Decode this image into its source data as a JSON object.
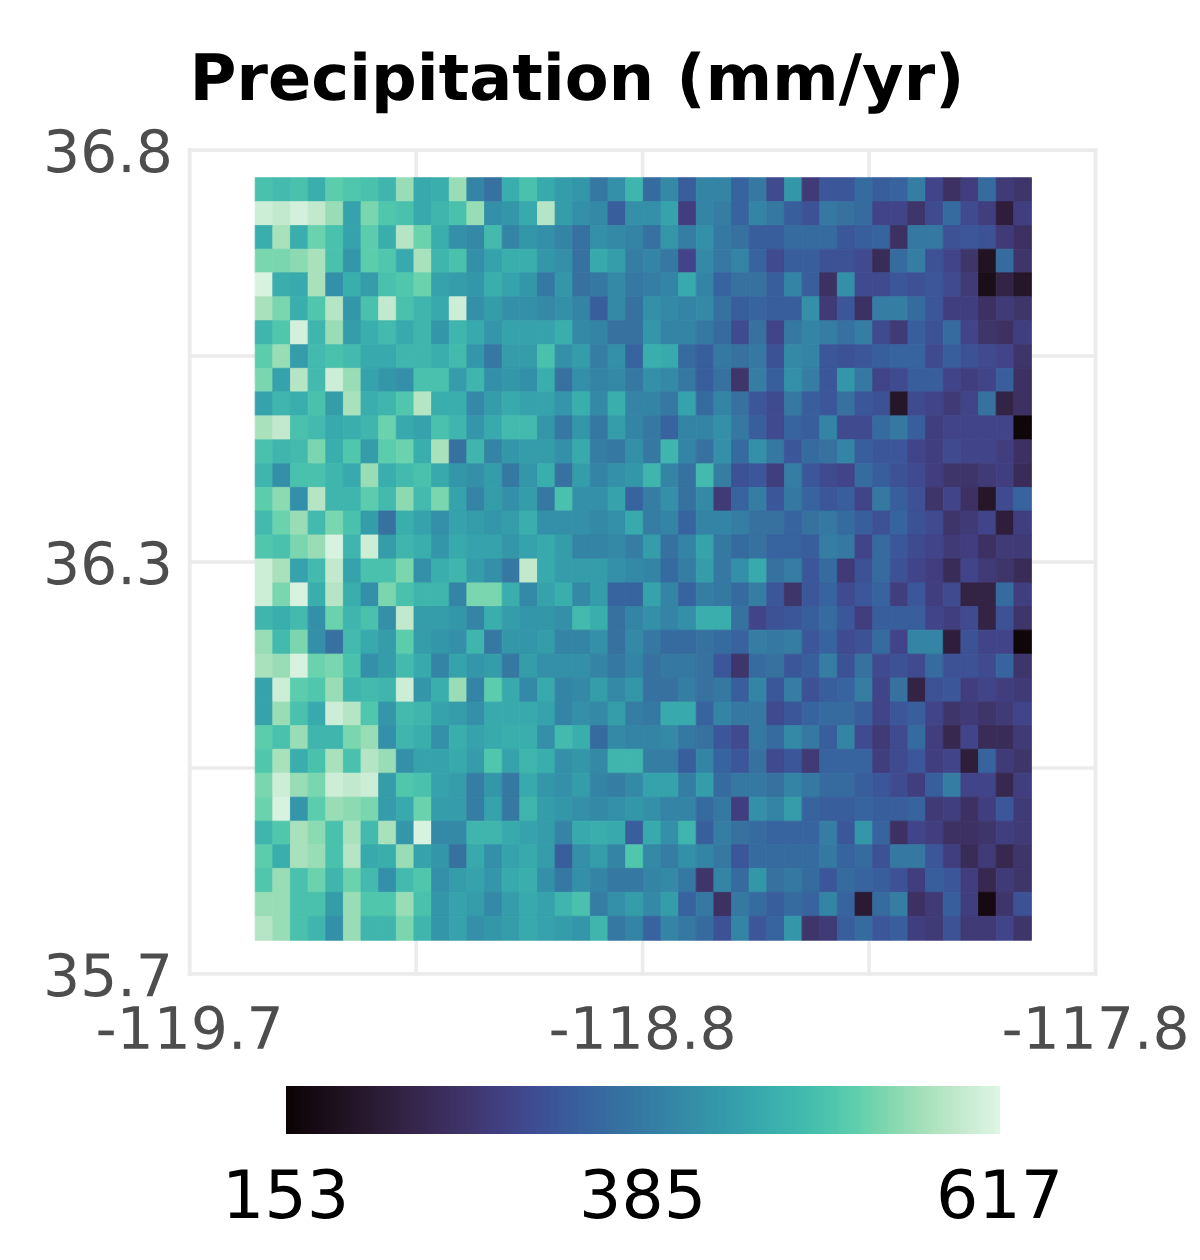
{
  "chart_data": {
    "type": "heatmap",
    "title": "Precipitation (mm/yr)",
    "x": [
      -119.544,
      -119.507,
      -119.47,
      -119.433,
      -119.396,
      -119.359,
      -119.322,
      -119.285,
      -119.248,
      -119.211,
      -119.174,
      -119.137,
      -119.1,
      -119.063,
      -119.026,
      -118.989,
      -118.952,
      -118.915,
      -118.878,
      -118.841,
      -118.804,
      -118.767,
      -118.73,
      -118.693,
      -118.656,
      -118.619,
      -118.582,
      -118.545,
      -118.508,
      -118.471,
      -118.434,
      -118.397,
      -118.36,
      -118.323,
      -118.286,
      -118.249,
      -118.212,
      -118.175,
      -118.138,
      -118.101,
      -118.064,
      -118.027,
      -117.99,
      -117.953
    ],
    "y": [
      36.747,
      36.715,
      36.683,
      36.652,
      36.62,
      36.588,
      36.556,
      36.524,
      36.493,
      36.461,
      36.429,
      36.397,
      36.365,
      36.334,
      36.302,
      36.27,
      36.238,
      36.206,
      36.175,
      36.143,
      36.111,
      36.079,
      36.047,
      36.016,
      35.984,
      35.952,
      35.92,
      35.888,
      35.857,
      35.825,
      35.793,
      35.761
    ],
    "cells": [
      [
        500,
        490,
        500,
        470,
        520,
        510,
        500,
        480,
        560,
        460,
        470,
        560,
        400,
        370,
        470,
        500,
        460,
        440,
        430,
        380,
        420,
        480,
        360,
        410,
        340,
        400,
        400,
        350,
        380,
        310,
        430,
        280,
        330,
        330,
        360,
        340,
        350,
        390,
        300,
        260,
        290,
        360,
        280,
        270
      ],
      [
        600,
        590,
        605,
        590,
        560,
        450,
        540,
        510,
        500,
        460,
        480,
        500,
        560,
        420,
        430,
        460,
        580,
        440,
        420,
        410,
        340,
        420,
        420,
        450,
        290,
        400,
        390,
        350,
        400,
        380,
        340,
        320,
        380,
        370,
        360,
        300,
        300,
        270,
        310,
        360,
        310,
        290,
        220,
        290
      ],
      [
        470,
        570,
        470,
        530,
        500,
        450,
        520,
        470,
        580,
        530,
        470,
        420,
        410,
        490,
        400,
        430,
        420,
        400,
        370,
        420,
        410,
        400,
        370,
        430,
        390,
        420,
        380,
        370,
        340,
        340,
        360,
        360,
        360,
        330,
        340,
        350,
        260,
        380,
        380,
        320,
        330,
        320,
        280,
        260
      ],
      [
        540,
        540,
        550,
        570,
        500,
        430,
        520,
        510,
        460,
        570,
        480,
        500,
        420,
        450,
        470,
        470,
        430,
        420,
        370,
        460,
        440,
        390,
        400,
        380,
        300,
        410,
        380,
        400,
        350,
        310,
        340,
        340,
        320,
        320,
        310,
        250,
        360,
        390,
        320,
        300,
        270,
        190,
        360,
        270
      ],
      [
        610,
        470,
        460,
        570,
        420,
        470,
        440,
        500,
        510,
        530,
        450,
        440,
        430,
        470,
        450,
        430,
        380,
        430,
        370,
        380,
        410,
        380,
        390,
        400,
        460,
        400,
        350,
        370,
        370,
        340,
        400,
        340,
        260,
        420,
        310,
        310,
        330,
        320,
        330,
        310,
        280,
        180,
        230,
        200
      ],
      [
        570,
        540,
        470,
        510,
        580,
        430,
        500,
        590,
        500,
        480,
        460,
        600,
        420,
        440,
        420,
        420,
        410,
        420,
        400,
        340,
        410,
        370,
        420,
        410,
        400,
        410,
        370,
        340,
        350,
        340,
        340,
        420,
        280,
        330,
        260,
        390,
        390,
        360,
        330,
        290,
        290,
        260,
        280,
        270
      ],
      [
        480,
        510,
        605,
        480,
        560,
        440,
        470,
        490,
        460,
        480,
        430,
        480,
        460,
        430,
        450,
        450,
        450,
        470,
        410,
        400,
        370,
        370,
        430,
        400,
        400,
        380,
        360,
        310,
        370,
        300,
        380,
        400,
        390,
        370,
        390,
        310,
        280,
        340,
        320,
        360,
        300,
        270,
        260,
        290
      ],
      [
        520,
        560,
        440,
        490,
        500,
        490,
        460,
        460,
        480,
        480,
        470,
        490,
        430,
        380,
        440,
        440,
        500,
        420,
        440,
        390,
        420,
        350,
        470,
        460,
        360,
        340,
        380,
        370,
        380,
        320,
        410,
        400,
        330,
        320,
        330,
        340,
        350,
        350,
        310,
        340,
        320,
        310,
        300,
        270
      ],
      [
        540,
        450,
        580,
        490,
        600,
        560,
        450,
        430,
        420,
        500,
        500,
        440,
        480,
        420,
        430,
        420,
        470,
        370,
        420,
        400,
        410,
        380,
        420,
        410,
        380,
        340,
        370,
        270,
        390,
        340,
        420,
        390,
        330,
        430,
        380,
        300,
        310,
        340,
        340,
        300,
        290,
        300,
        340,
        260
      ],
      [
        450,
        480,
        470,
        500,
        440,
        570,
        470,
        480,
        510,
        580,
        470,
        470,
        410,
        440,
        460,
        450,
        450,
        430,
        470,
        410,
        470,
        400,
        400,
        380,
        450,
        360,
        400,
        370,
        330,
        310,
        380,
        340,
        330,
        370,
        330,
        320,
        200,
        310,
        300,
        280,
        300,
        370,
        230,
        260
      ],
      [
        570,
        590,
        500,
        490,
        460,
        470,
        480,
        530,
        460,
        450,
        500,
        480,
        430,
        460,
        490,
        490,
        430,
        380,
        430,
        380,
        440,
        400,
        380,
        350,
        400,
        400,
        420,
        380,
        340,
        310,
        350,
        340,
        400,
        310,
        310,
        360,
        380,
        340,
        290,
        300,
        300,
        300,
        300,
        160
      ],
      [
        500,
        480,
        490,
        540,
        470,
        510,
        440,
        520,
        530,
        470,
        570,
        370,
        480,
        400,
        430,
        440,
        440,
        420,
        460,
        390,
        380,
        420,
        380,
        480,
        400,
        370,
        420,
        360,
        420,
        380,
        330,
        360,
        370,
        400,
        340,
        330,
        330,
        300,
        290,
        310,
        300,
        300,
        290,
        260
      ],
      [
        480,
        420,
        500,
        500,
        480,
        460,
        560,
        470,
        490,
        500,
        460,
        430,
        420,
        440,
        380,
        430,
        470,
        370,
        440,
        400,
        420,
        430,
        480,
        400,
        370,
        490,
        390,
        320,
        330,
        290,
        390,
        330,
        310,
        300,
        360,
        340,
        320,
        310,
        290,
        270,
        270,
        280,
        290,
        250
      ],
      [
        520,
        550,
        420,
        580,
        480,
        480,
        520,
        490,
        550,
        490,
        540,
        450,
        400,
        440,
        420,
        440,
        380,
        500,
        420,
        420,
        450,
        350,
        390,
        420,
        370,
        410,
        280,
        350,
        390,
        330,
        380,
        350,
        330,
        340,
        300,
        380,
        340,
        320,
        270,
        300,
        260,
        200,
        310,
        350
      ],
      [
        490,
        530,
        560,
        490,
        540,
        500,
        440,
        370,
        470,
        450,
        420,
        450,
        440,
        430,
        440,
        470,
        420,
        420,
        420,
        410,
        420,
        460,
        390,
        400,
        350,
        400,
        400,
        390,
        370,
        370,
        350,
        370,
        380,
        360,
        340,
        320,
        350,
        320,
        310,
        270,
        280,
        300,
        220,
        290
      ],
      [
        510,
        500,
        540,
        560,
        610,
        480,
        600,
        440,
        480,
        470,
        430,
        460,
        450,
        450,
        430,
        450,
        460,
        440,
        400,
        400,
        410,
        390,
        440,
        370,
        400,
        450,
        380,
        360,
        370,
        350,
        350,
        340,
        390,
        380,
        300,
        360,
        330,
        310,
        300,
        280,
        290,
        260,
        280,
        280
      ],
      [
        600,
        570,
        450,
        490,
        590,
        450,
        500,
        500,
        540,
        420,
        470,
        480,
        440,
        420,
        380,
        590,
        460,
        440,
        440,
        440,
        420,
        410,
        400,
        360,
        390,
        440,
        380,
        420,
        460,
        370,
        390,
        330,
        360,
        280,
        320,
        360,
        320,
        300,
        290,
        250,
        300,
        280,
        270,
        250
      ],
      [
        600,
        540,
        610,
        470,
        580,
        470,
        420,
        540,
        500,
        480,
        480,
        400,
        540,
        540,
        470,
        410,
        450,
        470,
        410,
        440,
        350,
        350,
        450,
        400,
        350,
        390,
        380,
        360,
        390,
        330,
        270,
        330,
        350,
        310,
        330,
        350,
        290,
        330,
        290,
        310,
        230,
        230,
        360,
        290
      ],
      [
        480,
        470,
        490,
        420,
        530,
        480,
        500,
        420,
        590,
        440,
        440,
        430,
        400,
        470,
        440,
        430,
        430,
        420,
        490,
        470,
        370,
        400,
        420,
        400,
        420,
        470,
        470,
        370,
        300,
        320,
        330,
        340,
        360,
        330,
        290,
        340,
        340,
        340,
        300,
        290,
        310,
        230,
        320,
        270
      ],
      [
        560,
        490,
        540,
        420,
        370,
        490,
        460,
        440,
        520,
        440,
        430,
        420,
        480,
        380,
        430,
        430,
        440,
        400,
        400,
        420,
        370,
        410,
        380,
        360,
        360,
        370,
        360,
        350,
        390,
        380,
        390,
        330,
        350,
        310,
        320,
        360,
        300,
        400,
        400,
        220,
        320,
        300,
        300,
        160
      ],
      [
        570,
        560,
        610,
        530,
        540,
        500,
        420,
        440,
        490,
        460,
        400,
        450,
        430,
        440,
        380,
        440,
        420,
        420,
        420,
        400,
        380,
        400,
        370,
        380,
        380,
        370,
        330,
        270,
        360,
        370,
        330,
        340,
        390,
        320,
        370,
        310,
        320,
        310,
        360,
        320,
        320,
        310,
        350,
        270
      ],
      [
        450,
        600,
        520,
        510,
        560,
        480,
        490,
        480,
        600,
        430,
        470,
        560,
        400,
        520,
        460,
        410,
        460,
        400,
        410,
        440,
        410,
        430,
        370,
        370,
        390,
        370,
        380,
        340,
        400,
        330,
        390,
        320,
        340,
        350,
        390,
        300,
        370,
        230,
        320,
        330,
        290,
        300,
        290,
        280
      ],
      [
        450,
        560,
        500,
        460,
        600,
        580,
        510,
        430,
        490,
        480,
        450,
        440,
        420,
        460,
        460,
        460,
        450,
        400,
        420,
        410,
        440,
        390,
        380,
        460,
        460,
        350,
        400,
        380,
        380,
        310,
        330,
        350,
        360,
        360,
        340,
        300,
        330,
        340,
        300,
        270,
        280,
        270,
        280,
        300
      ],
      [
        520,
        500,
        560,
        480,
        480,
        540,
        560,
        420,
        480,
        470,
        420,
        470,
        450,
        460,
        470,
        470,
        420,
        490,
        470,
        360,
        410,
        400,
        400,
        410,
        380,
        370,
        330,
        310,
        380,
        360,
        410,
        380,
        340,
        400,
        310,
        280,
        310,
        360,
        290,
        240,
        300,
        250,
        250,
        280
      ],
      [
        510,
        570,
        470,
        500,
        570,
        500,
        580,
        560,
        420,
        450,
        450,
        460,
        440,
        510,
        450,
        480,
        470,
        420,
        430,
        410,
        480,
        480,
        390,
        390,
        340,
        400,
        350,
        330,
        370,
        310,
        330,
        280,
        350,
        350,
        350,
        290,
        310,
        330,
        290,
        300,
        220,
        350,
        280,
        270
      ],
      [
        540,
        600,
        560,
        540,
        600,
        590,
        600,
        440,
        510,
        500,
        450,
        440,
        390,
        430,
        380,
        460,
        430,
        420,
        440,
        400,
        390,
        410,
        450,
        450,
        390,
        440,
        360,
        380,
        380,
        370,
        400,
        380,
        360,
        360,
        340,
        330,
        310,
        290,
        340,
        390,
        300,
        300,
        240,
        290
      ],
      [
        530,
        610,
        430,
        520,
        560,
        550,
        540,
        440,
        460,
        530,
        440,
        440,
        390,
        450,
        380,
        480,
        440,
        430,
        420,
        410,
        420,
        430,
        420,
        400,
        400,
        360,
        380,
        290,
        420,
        400,
        440,
        350,
        340,
        340,
        350,
        340,
        340,
        350,
        280,
        290,
        260,
        290,
        330,
        280
      ],
      [
        480,
        510,
        570,
        550,
        500,
        570,
        490,
        570,
        430,
        610,
        410,
        410,
        480,
        480,
        460,
        450,
        440,
        400,
        460,
        470,
        460,
        340,
        460,
        420,
        480,
        340,
        390,
        370,
        360,
        350,
        350,
        350,
        390,
        330,
        430,
        350,
        260,
        300,
        290,
        260,
        260,
        270,
        290,
        280
      ],
      [
        520,
        470,
        570,
        560,
        500,
        580,
        460,
        470,
        560,
        450,
        430,
        370,
        460,
        420,
        450,
        460,
        440,
        340,
        420,
        440,
        400,
        510,
        410,
        390,
        420,
        400,
        380,
        330,
        360,
        360,
        360,
        360,
        380,
        350,
        360,
        320,
        380,
        380,
        330,
        290,
        250,
        280,
        240,
        270
      ],
      [
        510,
        560,
        500,
        530,
        480,
        530,
        490,
        420,
        490,
        510,
        420,
        440,
        450,
        430,
        460,
        470,
        420,
        380,
        420,
        400,
        380,
        380,
        400,
        410,
        380,
        270,
        400,
        360,
        430,
        370,
        380,
        360,
        330,
        360,
        350,
        340,
        320,
        290,
        340,
        330,
        290,
        240,
        280,
        270
      ],
      [
        560,
        560,
        500,
        500,
        440,
        560,
        510,
        510,
        560,
        500,
        430,
        450,
        440,
        410,
        440,
        460,
        450,
        480,
        500,
        390,
        420,
        440,
        410,
        440,
        350,
        380,
        260,
        380,
        360,
        340,
        360,
        350,
        400,
        350,
        210,
        360,
        390,
        260,
        280,
        340,
        290,
        170,
        270,
        320
      ],
      [
        580,
        560,
        500,
        480,
        420,
        560,
        480,
        480,
        540,
        480,
        430,
        450,
        420,
        430,
        440,
        460,
        450,
        440,
        430,
        480,
        380,
        400,
        350,
        400,
        380,
        360,
        320,
        400,
        330,
        350,
        430,
        270,
        280,
        340,
        360,
        330,
        340,
        290,
        280,
        320,
        280,
        280,
        300,
        270
      ]
    ],
    "clim": [
      153,
      617
    ],
    "cticks": [
      153,
      385,
      617
    ],
    "xlim": [
      -119.7,
      -117.8
    ],
    "ylim": [
      35.7,
      36.8
    ],
    "xticks": [
      -119.7,
      {
        "value": -119.225,
        "label": null
      },
      {
        "value": -118.75,
        "label": "-118.8"
      },
      {
        "value": -118.275,
        "label": null
      },
      -117.8
    ],
    "yticks": [
      35.7,
      {
        "value": 35.975,
        "label": null
      },
      {
        "value": 36.25,
        "label": "36.3"
      },
      {
        "value": 36.525,
        "label": null
      },
      36.8
    ],
    "grid": true
  }
}
